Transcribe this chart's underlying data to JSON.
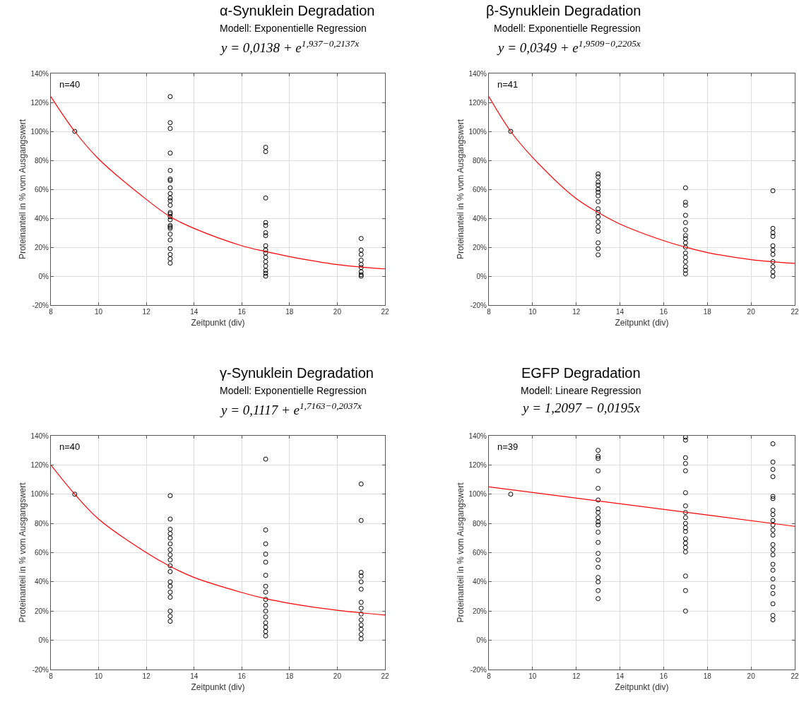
{
  "chart_data": [
    {
      "type": "scatter",
      "title": "α-Synuklein Degradation",
      "subtitle": "Modell: Exponentielle Regression",
      "xlabel": "Zeitpunkt (div)",
      "ylabel": "Proteinanteil in % vom Ausgangswert",
      "annotations": [
        "n=40",
        "y = 0,0138 + e$^{1,937−0,2137x}$"
      ],
      "xlim": [
        8,
        22
      ],
      "xticks": [
        8,
        10,
        12,
        14,
        16,
        18,
        20,
        22
      ],
      "ylim": [
        -20,
        140
      ],
      "yticks": [
        {
          "value": -20,
          "label": "-20%"
        },
        {
          "value": 0,
          "label": "0%"
        },
        {
          "value": 20,
          "label": "20%"
        },
        {
          "value": 40,
          "label": "40%"
        },
        {
          "value": 60,
          "label": "60%"
        },
        {
          "value": 80,
          "label": "80%"
        },
        {
          "value": 100,
          "label": "100%"
        },
        {
          "value": 120,
          "label": "120%"
        },
        {
          "value": 140,
          "label": "140%"
        }
      ],
      "grid": true,
      "series": [
        {
          "marker": "circle",
          "color": "#000000",
          "x": [
            9,
            13,
            13,
            13,
            13,
            13,
            13,
            13,
            13,
            13,
            13,
            13,
            13,
            13,
            13,
            13,
            13,
            13,
            13,
            13,
            13,
            13,
            13,
            13,
            13,
            13,
            17,
            17,
            17,
            17,
            17,
            17,
            17,
            17,
            17,
            17,
            17,
            17,
            17,
            17,
            17,
            17,
            21,
            21,
            21,
            21,
            21,
            21,
            21,
            21,
            21
          ],
          "values": [
            100,
            124,
            106,
            102,
            85,
            73,
            67,
            66,
            61,
            57,
            54,
            52,
            49,
            44,
            41,
            39,
            35,
            34,
            29,
            25,
            19,
            15,
            12,
            9,
            43,
            33,
            89,
            86,
            54,
            37,
            35,
            30,
            28,
            21,
            18,
            16,
            13,
            10,
            7,
            4,
            2,
            0,
            26,
            18,
            15,
            11,
            8,
            6,
            3,
            1,
            0
          ]
        },
        {
          "type": "line",
          "color": "#ff0000",
          "x": [
            8,
            9,
            10,
            12,
            13,
            14,
            16,
            17,
            18,
            20,
            22
          ],
          "values": [
            124,
            100,
            81,
            53,
            41,
            33,
            21,
            17,
            13.5,
            8,
            5
          ]
        }
      ]
    },
    {
      "type": "scatter",
      "title": "β-Synuklein Degradation",
      "subtitle": "Modell: Exponentielle Regression",
      "xlabel": "Zeitpunkt (div)",
      "ylabel": "Proteinanteil in % vom Ausgangswert",
      "annotations": [
        "n=41",
        "y = 0,0349 + e$^{1,9509−0,2205x}$"
      ],
      "xlim": [
        8,
        22
      ],
      "xticks": [
        8,
        10,
        12,
        14,
        16,
        18,
        20,
        22
      ],
      "ylim": [
        -20,
        140
      ],
      "yticks": [
        {
          "value": -20,
          "label": "-20%"
        },
        {
          "value": 0,
          "label": "0%"
        },
        {
          "value": 20,
          "label": "20%"
        },
        {
          "value": 40,
          "label": "40%"
        },
        {
          "value": 60,
          "label": "60%"
        },
        {
          "value": 80,
          "label": "80%"
        },
        {
          "value": 100,
          "label": "100%"
        },
        {
          "value": 120,
          "label": "120%"
        },
        {
          "value": 140,
          "label": "140%"
        }
      ],
      "grid": true,
      "series": [
        {
          "marker": "circle",
          "color": "#000000",
          "x": [
            9,
            13,
            13,
            13,
            13,
            13,
            13,
            13,
            13,
            13,
            13,
            13,
            13,
            13,
            13,
            13,
            13,
            13,
            17,
            17,
            17,
            17,
            17,
            17,
            17,
            17,
            17,
            17,
            17,
            17,
            17,
            17,
            17,
            17,
            21,
            21,
            21,
            21,
            21,
            21,
            21,
            21,
            21,
            21,
            21
          ],
          "values": [
            100,
            70.6,
            68.6,
            65,
            63,
            60,
            58,
            55.5,
            51.5,
            46.5,
            44,
            41,
            37.5,
            34,
            31,
            23,
            19,
            14.7,
            61,
            51,
            49,
            42,
            37,
            32,
            28,
            26,
            23,
            20,
            16,
            13,
            10,
            6.5,
            4,
            1.6,
            59,
            33,
            30,
            27.5,
            21,
            18,
            15,
            10,
            6.5,
            3,
            0
          ]
        },
        {
          "type": "line",
          "color": "#ff0000",
          "x": [
            8,
            9,
            10,
            12,
            13,
            14,
            16,
            17,
            18,
            20,
            22
          ],
          "values": [
            124,
            100,
            82,
            53.5,
            44,
            36,
            24.5,
            20,
            16.3,
            11.4,
            8.8
          ]
        }
      ]
    },
    {
      "type": "scatter",
      "title": "γ-Synuklein Degradation",
      "subtitle": "Modell: Exponentielle Regression",
      "xlabel": "Zeitpunkt (div)",
      "ylabel": "Proteinanteil in % vom Ausgangswert",
      "annotations": [
        "n=40",
        "y = 0,1117 + e$^{1,7163−0,2037x}$"
      ],
      "xlim": [
        8,
        22
      ],
      "xticks": [
        8,
        10,
        12,
        14,
        16,
        18,
        20,
        22
      ],
      "ylim": [
        -20,
        140
      ],
      "yticks": [
        {
          "value": -20,
          "label": "-20%"
        },
        {
          "value": 0,
          "label": "0%"
        },
        {
          "value": 20,
          "label": "20%"
        },
        {
          "value": 40,
          "label": "40%"
        },
        {
          "value": 60,
          "label": "60%"
        },
        {
          "value": 80,
          "label": "80%"
        },
        {
          "value": 100,
          "label": "100%"
        },
        {
          "value": 120,
          "label": "120%"
        },
        {
          "value": 140,
          "label": "140%"
        }
      ],
      "grid": true,
      "series": [
        {
          "marker": "circle",
          "color": "#000000",
          "x": [
            9,
            13,
            13,
            13,
            13,
            13,
            13,
            13,
            13,
            13,
            13,
            13,
            13,
            13,
            13,
            13,
            13,
            13,
            13,
            17,
            17,
            17,
            17,
            17,
            17,
            17,
            17,
            17,
            17,
            17,
            17,
            17,
            17,
            17,
            17,
            21,
            21,
            21,
            21,
            21,
            21,
            21,
            21,
            21,
            21,
            21,
            21,
            21,
            21
          ],
          "values": [
            100,
            99,
            83,
            76,
            73,
            70,
            66,
            62,
            58.5,
            55,
            51,
            47,
            40,
            37,
            33,
            29.5,
            20,
            16.5,
            13,
            124,
            75.5,
            66,
            59,
            53.5,
            44.5,
            37,
            33,
            28,
            24,
            20,
            16,
            12,
            9,
            6,
            3,
            107,
            82,
            46.5,
            44,
            40,
            35,
            26,
            22,
            18,
            14,
            10.5,
            7.5,
            4,
            1
          ]
        },
        {
          "type": "line",
          "color": "#ff0000",
          "x": [
            8,
            9,
            10,
            12,
            13,
            14,
            16,
            17,
            18,
            20,
            22
          ],
          "values": [
            120,
            100,
            83,
            60,
            50.6,
            43,
            32.7,
            28.5,
            25.3,
            20.5,
            17.3
          ]
        }
      ]
    },
    {
      "type": "scatter",
      "title": "EGFP Degradation",
      "subtitle": "Modell: Lineare Regression",
      "xlabel": "Zeitpunkt (div)",
      "ylabel": "Proteinanteil in % vom Ausgangswert",
      "annotations": [
        "n=39",
        "y = 1,2097 − 0,0195x"
      ],
      "xlim": [
        8,
        22
      ],
      "xticks": [
        8,
        10,
        12,
        14,
        16,
        18,
        20,
        22
      ],
      "ylim": [
        -20,
        140
      ],
      "yticks": [
        {
          "value": -20,
          "label": "-20%"
        },
        {
          "value": 0,
          "label": "0%"
        },
        {
          "value": 20,
          "label": "20%"
        },
        {
          "value": 40,
          "label": "40%"
        },
        {
          "value": 60,
          "label": "60%"
        },
        {
          "value": 80,
          "label": "80%"
        },
        {
          "value": 100,
          "label": "100%"
        },
        {
          "value": 120,
          "label": "120%"
        },
        {
          "value": 140,
          "label": "140%"
        }
      ],
      "grid": true,
      "series": [
        {
          "marker": "circle",
          "color": "#000000",
          "x": [
            9,
            13,
            13,
            13,
            13,
            13,
            13,
            13,
            13,
            13,
            13,
            13,
            13,
            13,
            13,
            13,
            13,
            13,
            13,
            13,
            13,
            17,
            17,
            17,
            17,
            17,
            17,
            17,
            17,
            17,
            17,
            17,
            17,
            17,
            17,
            17,
            17,
            17,
            17,
            17,
            21,
            21,
            21,
            21,
            21,
            21,
            21,
            21,
            21,
            21,
            21,
            21,
            21,
            21,
            21,
            21,
            21,
            21,
            21,
            21,
            21,
            21,
            21
          ],
          "values": [
            100,
            130,
            126,
            124.5,
            116,
            104,
            96,
            90,
            87.5,
            84,
            81,
            79,
            74,
            67,
            59.5,
            55,
            50,
            43,
            40,
            34,
            28.5,
            139,
            137,
            125,
            121,
            116,
            101,
            92,
            87.5,
            84,
            80,
            77,
            74.5,
            69.5,
            66.5,
            63.5,
            60.5,
            44,
            34,
            20,
            134.5,
            122,
            117,
            112,
            98.5,
            97,
            89,
            86,
            82,
            79,
            75.5,
            72,
            65.5,
            62,
            58.5,
            52,
            48,
            42,
            36.5,
            32,
            25,
            17,
            14
          ]
        },
        {
          "type": "line",
          "color": "#ff0000",
          "x": [
            8,
            22
          ],
          "values": [
            105,
            78
          ]
        }
      ]
    }
  ]
}
